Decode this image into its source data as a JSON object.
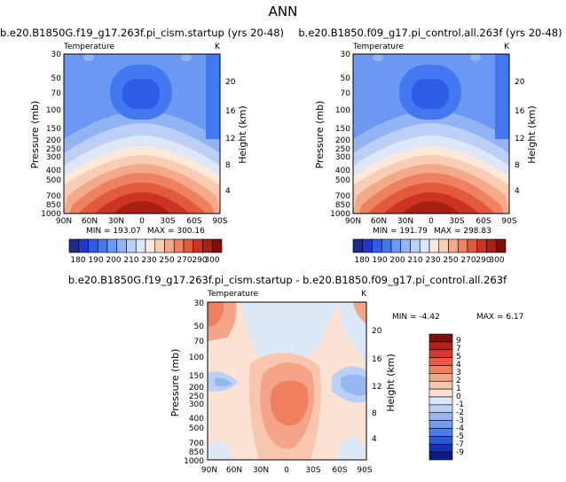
{
  "title": "ANN",
  "chart_data": [
    {
      "type": "contour",
      "subtitle": "b.e20.B1850G.f19_g17.263f.pi_cism.startup (yrs 20-48)",
      "variable": "Temperature",
      "units": "K",
      "xlabel": "",
      "ylabel": "Pressure (mb)",
      "ylabel_right": "Height (km)",
      "x_ticks": [
        "90N",
        "60N",
        "30N",
        "0",
        "30S",
        "60S",
        "90S"
      ],
      "y_ticks": [
        "30",
        "50",
        "70",
        "100",
        "150",
        "200",
        "250",
        "300",
        "400",
        "500",
        "700",
        "850",
        "1000"
      ],
      "height_ticks": [
        "20",
        "16",
        "12",
        "8",
        "4"
      ],
      "min_label": "MIN = 193.07",
      "max_label": "MAX = 300.16",
      "min": 193.07,
      "max": 300.16,
      "colorbar_labels": [
        "180",
        "190",
        "200",
        "210",
        "230",
        "250",
        "270",
        "290",
        "300"
      ]
    },
    {
      "type": "contour",
      "subtitle": "b.e20.B1850.f09_g17.pi_control.all.263f (yrs 20-48)",
      "variable": "Temperature",
      "units": "K",
      "xlabel": "",
      "ylabel": "Pressure (mb)",
      "ylabel_right": "Height (km)",
      "x_ticks": [
        "90N",
        "60N",
        "30N",
        "0",
        "30S",
        "60S",
        "90S"
      ],
      "y_ticks": [
        "30",
        "50",
        "70",
        "100",
        "150",
        "200",
        "250",
        "300",
        "400",
        "500",
        "700",
        "850",
        "1000"
      ],
      "height_ticks": [
        "20",
        "16",
        "12",
        "8",
        "4"
      ],
      "min_label": "MIN = 191.79",
      "max_label": "MAX = 298.83",
      "min": 191.79,
      "max": 298.83,
      "colorbar_labels": [
        "180",
        "190",
        "200",
        "210",
        "230",
        "250",
        "270",
        "290",
        "300"
      ]
    },
    {
      "type": "contour",
      "subtitle": "b.e20.B1850G.f19_g17.263f.pi_cism.startup - b.e20.B1850.f09_g17.pi_control.all.263f",
      "variable": "Temperature",
      "units": "K",
      "xlabel": "",
      "ylabel": "Pressure (mb)",
      "ylabel_right": "Height (km)",
      "x_ticks": [
        "90N",
        "60N",
        "30N",
        "0",
        "30S",
        "60S",
        "90S"
      ],
      "y_ticks": [
        "30",
        "50",
        "70",
        "100",
        "150",
        "200",
        "250",
        "300",
        "400",
        "500",
        "700",
        "850",
        "1000"
      ],
      "height_ticks": [
        "20",
        "16",
        "12",
        "8",
        "4"
      ],
      "min_label": "MIN = -4.42",
      "max_label": "MAX = 6.17",
      "min": -4.42,
      "max": 6.17,
      "colorbar_labels": [
        "9",
        "7",
        "5",
        "4",
        "3",
        "2",
        "1",
        "0",
        "-1",
        "-2",
        "-3",
        "-4",
        "-5",
        "-7",
        "-9"
      ]
    }
  ],
  "colors": {
    "abs_levels": [
      "#1c2a8a",
      "#2137c9",
      "#2f5ce6",
      "#4478f0",
      "#6b98f2",
      "#93b4f4",
      "#bcd0f6",
      "#dde7f8",
      "#fde9dc",
      "#f8cdb3",
      "#f3a98a",
      "#ed8160",
      "#e25a3c",
      "#cc3322",
      "#a71f15",
      "#7f0f0c"
    ],
    "diff_levels": [
      "#7f0f0c",
      "#b3201a",
      "#d6392b",
      "#e95c43",
      "#f0805f",
      "#f4a487",
      "#f8c6ad",
      "#fbe2d3",
      "#dce8f8",
      "#bad0f4",
      "#98b7f1",
      "#739bee",
      "#4c7ce9",
      "#2c58dc",
      "#1532b3",
      "#0a1c7c"
    ]
  }
}
